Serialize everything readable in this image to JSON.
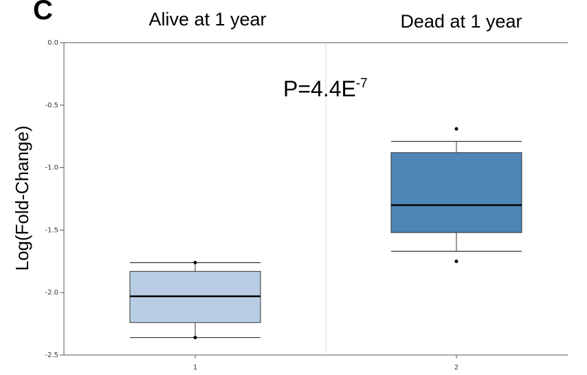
{
  "panel_label": "C",
  "chart_data": {
    "type": "box",
    "title": "",
    "ylabel": "Log(Fold-Change)",
    "ylim": [
      -2.5,
      0.0
    ],
    "yticks": [
      "0.0",
      "-0.5",
      "-1.0",
      "-1.5",
      "-2.0",
      "-2.5"
    ],
    "ytick_values": [
      0.0,
      -0.5,
      -1.0,
      -1.5,
      -2.0,
      -2.5
    ],
    "xtick_labels": [
      "1",
      "2"
    ],
    "annotation": {
      "base": "P=4.4E",
      "exponent": "-7"
    },
    "groups": [
      {
        "name": "Alive at 1 year",
        "tick": "1",
        "whisker_high": -1.76,
        "q3": -1.83,
        "median": -2.03,
        "q1": -2.24,
        "whisker_low": -2.36,
        "outliers": [
          -1.76,
          -2.36
        ],
        "color": "#b8cde3"
      },
      {
        "name": "Dead at 1 year",
        "tick": "2",
        "whisker_high": -0.79,
        "q3": -0.88,
        "median": -1.3,
        "q1": -1.52,
        "whisker_low": -1.67,
        "outliers": [
          -0.69,
          -1.75
        ],
        "color": "#4e86b6"
      }
    ],
    "grid": true
  }
}
